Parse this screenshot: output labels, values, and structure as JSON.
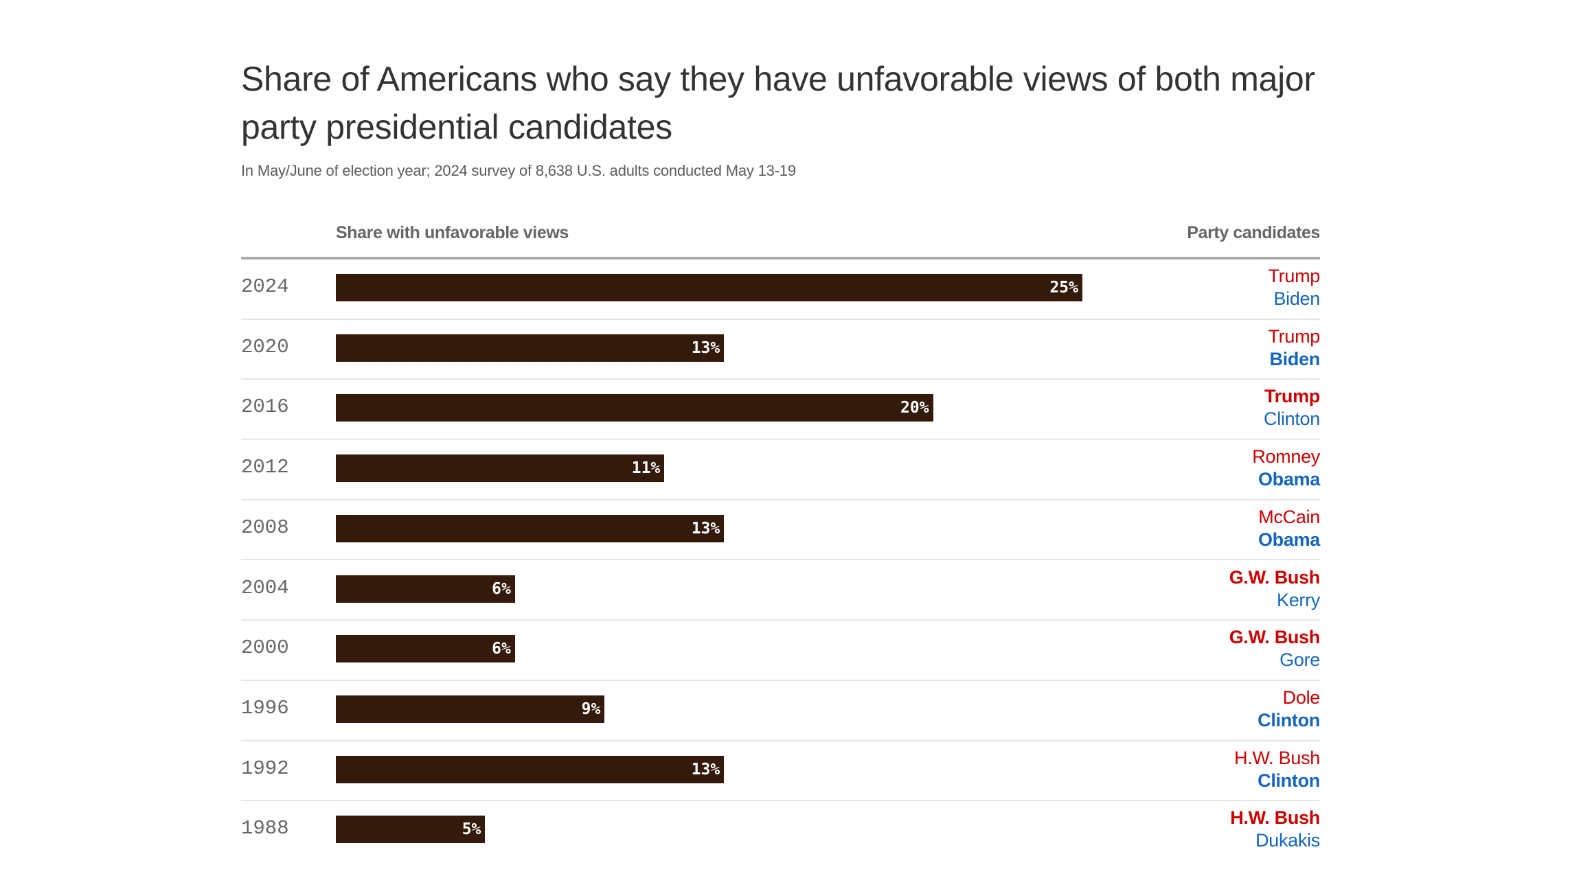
{
  "chart_data": {
    "type": "bar",
    "orientation": "horizontal",
    "title": "Share of Americans who say they have unfavorable views of both major party presidential candidates",
    "subtitle": "In May/June of election year; 2024 survey of 8,638 U.S. adults conducted May 13-19",
    "xlabel": "Share with unfavorable views",
    "right_column_label": "Party candidates",
    "categories": [
      "2024",
      "2020",
      "2016",
      "2012",
      "2008",
      "2004",
      "2000",
      "1996",
      "1992",
      "1988"
    ],
    "values": [
      25,
      13,
      20,
      11,
      13,
      6,
      6,
      9,
      13,
      5
    ],
    "value_labels": [
      "25%",
      "13%",
      "20%",
      "11%",
      "13%",
      "6%",
      "6%",
      "9%",
      "13%",
      "5%"
    ],
    "unit": "%",
    "xlim": [
      0,
      25
    ],
    "grid": false,
    "candidates": [
      {
        "republican": "Trump",
        "democrat": "Biden",
        "winner": "none"
      },
      {
        "republican": "Trump",
        "democrat": "Biden",
        "winner": "democrat"
      },
      {
        "republican": "Trump",
        "democrat": "Clinton",
        "winner": "republican"
      },
      {
        "republican": "Romney",
        "democrat": "Obama",
        "winner": "democrat"
      },
      {
        "republican": "McCain",
        "democrat": "Obama",
        "winner": "democrat"
      },
      {
        "republican": "G.W. Bush",
        "democrat": "Kerry",
        "winner": "republican"
      },
      {
        "republican": "G.W. Bush",
        "democrat": "Gore",
        "winner": "republican"
      },
      {
        "republican": "Dole",
        "democrat": "Clinton",
        "winner": "democrat"
      },
      {
        "republican": "H.W. Bush",
        "democrat": "Clinton",
        "winner": "democrat"
      },
      {
        "republican": "H.W. Bush",
        "democrat": "Dukakis",
        "winner": "republican"
      }
    ]
  },
  "colors": {
    "bar": "#331a0a",
    "republican": "#cc0000",
    "democrat": "#1565c0",
    "title": "#333333",
    "subtitle": "#5c5c5c",
    "header": "#666666"
  }
}
